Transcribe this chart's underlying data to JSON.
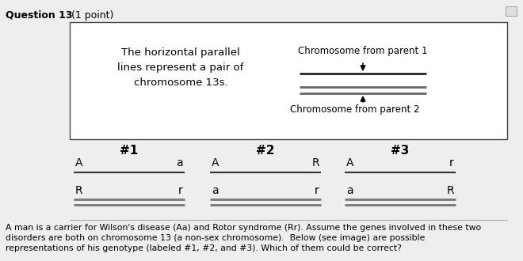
{
  "title_bold": "Question 13",
  "title_normal": " (1 point)",
  "bg_color": "#eeeeee",
  "box_bg": "#ffffff",
  "text_color": "#000000",
  "legend_text_lines": [
    "The horizontal parallel",
    "lines represent a pair of",
    "chromosome 13s."
  ],
  "chrom_label1": "Chromosome from parent 1",
  "chrom_label2": "Chromosome from parent 2",
  "group_labels": [
    "#1",
    "#2",
    "#3"
  ],
  "group1_top": [
    "A",
    "a"
  ],
  "group1_bot": [
    "R",
    "r"
  ],
  "group2_top": [
    "A",
    "R"
  ],
  "group2_bot": [
    "a",
    "r"
  ],
  "group3_top": [
    "A",
    "r"
  ],
  "group3_bot": [
    "a",
    "R"
  ],
  "footer_lines": [
    "A man is a carrier for Wilson's disease (Aa) and Rotor syndrome (Rr). Assume the genes involved in these two",
    "disorders are both on chromosome 13 (a non-sex chromosome).  Below (see image) are possible",
    "representations of his genotype (labeled #1, #2, and #3). Which of them could be correct?"
  ]
}
